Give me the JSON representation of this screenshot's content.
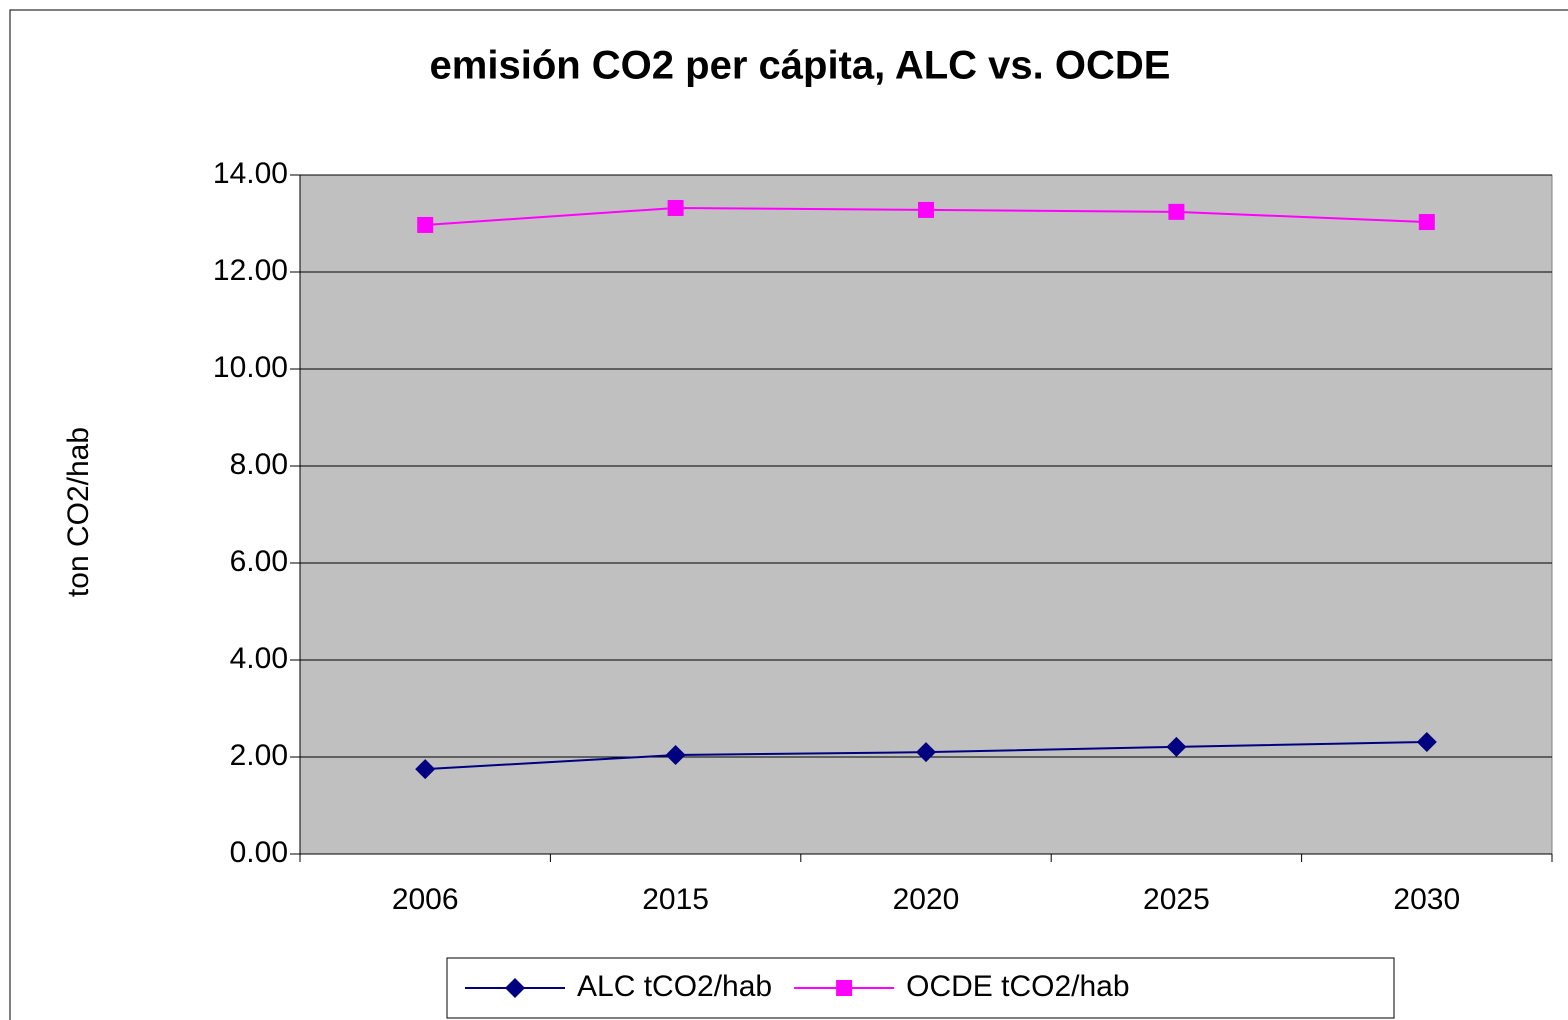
{
  "chart_data": {
    "type": "line",
    "title": "emisión CO2 per cápita, ALC vs. OCDE",
    "y_label": "ton CO2/hab",
    "categories": [
      "2006",
      "2015",
      "2020",
      "2025",
      "2030"
    ],
    "series": [
      {
        "name": "ALC tCO2/hab",
        "color": "#000080",
        "marker": "diamond",
        "values": [
          1.75,
          2.04,
          2.1,
          2.21,
          2.31
        ]
      },
      {
        "name": "OCDE tCO2/hab",
        "color": "#ff00ff",
        "marker": "square",
        "values": [
          12.97,
          13.32,
          13.28,
          13.24,
          13.03
        ]
      }
    ],
    "ylim": [
      0,
      14
    ],
    "yticks": [
      {
        "value": 0,
        "label": "0.00"
      },
      {
        "value": 2,
        "label": "2.00"
      },
      {
        "value": 4,
        "label": "4.00"
      },
      {
        "value": 6,
        "label": "6.00"
      },
      {
        "value": 8,
        "label": "8.00"
      },
      {
        "value": 10,
        "label": "10.00"
      },
      {
        "value": 12,
        "label": "12.00"
      },
      {
        "value": 14,
        "label": "14.00"
      }
    ],
    "grid": true,
    "plot_background": "#c0c0c0",
    "legend": "bottom"
  }
}
